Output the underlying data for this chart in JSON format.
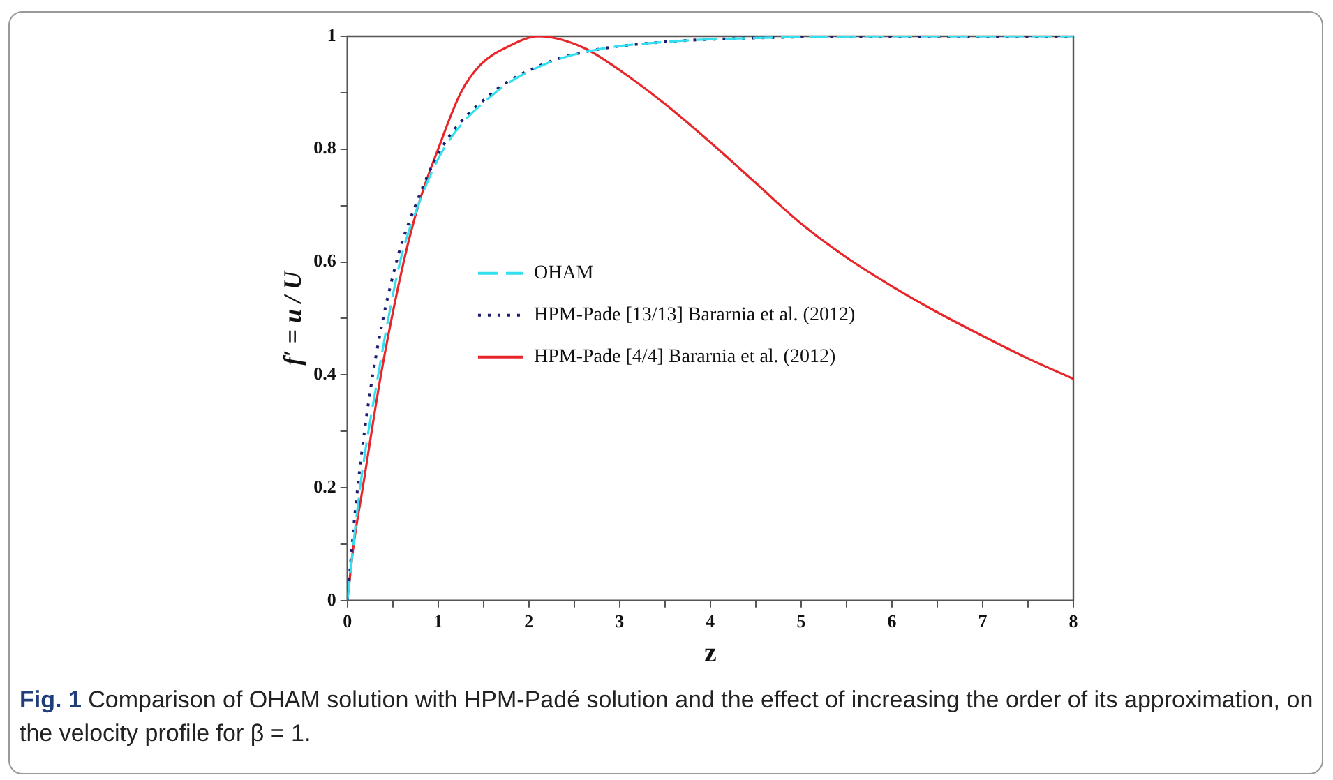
{
  "chart_data": {
    "type": "line",
    "xlabel": "z",
    "ylabel": "f′ = u / U",
    "xlim": [
      0,
      8
    ],
    "ylim": [
      0,
      1
    ],
    "xticks": [
      0,
      {
        "value": 0.5,
        "label": null
      },
      1,
      {
        "value": 1.5,
        "label": null
      },
      2,
      {
        "value": 2.5,
        "label": null
      },
      3,
      {
        "value": 3.5,
        "label": null
      },
      4,
      {
        "value": 4.5,
        "label": null
      },
      5,
      {
        "value": 5.5,
        "label": null
      },
      6,
      {
        "value": 6.5,
        "label": null
      },
      7,
      {
        "value": 7.5,
        "label": null
      },
      8
    ],
    "yticks": [
      0,
      {
        "value": 0.1,
        "label": null
      },
      0.2,
      {
        "value": 0.3,
        "label": null
      },
      0.4,
      {
        "value": 0.5,
        "label": null
      },
      0.6,
      {
        "value": 0.7,
        "label": null
      },
      0.8,
      {
        "value": 0.9,
        "label": null
      },
      1
    ],
    "grid": false,
    "legend": "center left",
    "marker": "none",
    "series": [
      {
        "name": "OHAM",
        "color": "#33e0f0",
        "line_style": "dashed",
        "x": [
          0,
          0.14,
          0.34,
          0.58,
          0.78,
          1.06,
          1.63,
          2.17,
          2.7,
          3.5,
          4.5,
          6,
          8
        ],
        "values": [
          0,
          0.2,
          0.4,
          0.6,
          0.7,
          0.8,
          0.9,
          0.95,
          0.975,
          0.99,
          0.997,
          1,
          1
        ]
      },
      {
        "name": "HPM-Pade [13/13] Bararnia et al. (2012)",
        "color": "#1c1c70",
        "line_style": "dotted",
        "x": [
          0,
          0.1,
          0.28,
          0.54,
          0.75,
          1.03,
          1.6,
          2.15,
          2.7,
          3.5,
          4.5,
          6,
          8
        ],
        "values": [
          0,
          0.18,
          0.4,
          0.6,
          0.7,
          0.8,
          0.9,
          0.95,
          0.975,
          0.99,
          0.997,
          1,
          1
        ]
      },
      {
        "name": "HPM-Pade [4/4] Bararnia et al. (2012)",
        "color": "#e8262a",
        "line_style": "solid",
        "x": [
          0,
          0.07,
          0.17,
          0.37,
          0.62,
          0.8,
          1,
          1.25,
          1.47,
          1.75,
          2.11,
          2.6,
          3,
          3.5,
          4,
          4.5,
          5,
          5.5,
          6,
          6.5,
          7,
          7.5,
          8
        ],
        "values": [
          0,
          0.1,
          0.2,
          0.4,
          0.6,
          0.71,
          0.8,
          0.9,
          0.95,
          0.98,
          1,
          0.98,
          0.94,
          0.88,
          0.812,
          0.74,
          0.668,
          0.608,
          0.557,
          0.511,
          0.469,
          0.429,
          0.393
        ]
      }
    ],
    "annotations": [
      "Fig. 1 Comparison of OHAM solution with HPM-Padé solution and the effect of increasing the order of its approximation, on the velocity profile for β = 1."
    ]
  }
}
